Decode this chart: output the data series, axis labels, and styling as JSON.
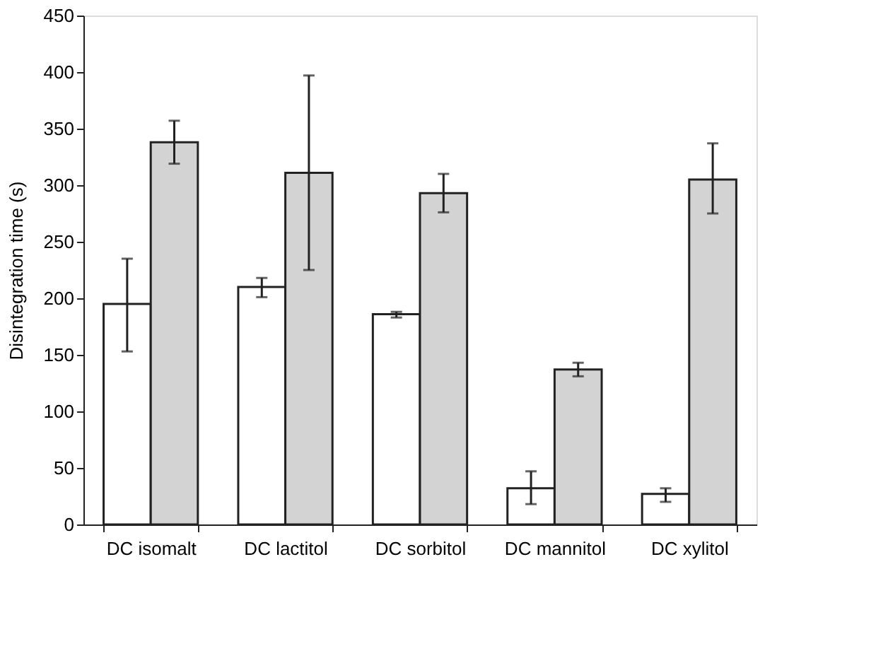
{
  "chart_data": {
    "type": "bar",
    "ylabel": "Disintegration time (s)",
    "categories": [
      "DC isomalt",
      "DC lactitol",
      "DC sorbitol",
      "DC mannitol",
      "DC xylitol"
    ],
    "series": [
      {
        "color": "#ffffff",
        "values": [
          195,
          210,
          186,
          32,
          27
        ],
        "errors": [
          [
            153,
            235
          ],
          [
            201,
            218
          ],
          [
            183,
            188
          ],
          [
            18,
            47
          ],
          [
            20,
            32
          ]
        ]
      },
      {
        "color": "#d3d3d3",
        "values": [
          338,
          311,
          293,
          137,
          305
        ],
        "errors": [
          [
            319,
            357
          ],
          [
            225,
            397
          ],
          [
            276,
            310
          ],
          [
            131,
            143
          ],
          [
            275,
            337
          ]
        ]
      }
    ],
    "ylim": [
      0,
      450
    ],
    "yticks": [
      0,
      50,
      100,
      150,
      200,
      250,
      300,
      350,
      400,
      450
    ],
    "grid": false
  }
}
